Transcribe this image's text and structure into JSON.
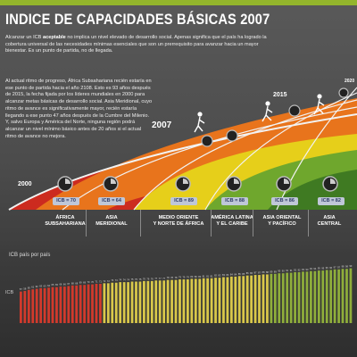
{
  "title": "INDICE DE CAPACIDADES BÁSICAS 2007",
  "intro": {
    "prefix": "Alcanzar un ICB ",
    "bold": "aceptable",
    "rest": " no implica un nivel elevado de desarrollo social. Apenas significa que el país ha logrado la cobertura universal de las necesidades mínimas esenciales que son un prerrequisito para avanzar hacia un mayor bienestar. Es un punto de partida, no de llegada."
  },
  "paragraph": "Al actual ritmo de progreso, África Subsahariana recién estaría en ese punto de partida hacia el año 2108. Esto es 93 años después de 2015, la fecha fijada por los líderes mundiales en 2000 para alcanzar metas básicas de desarrollo social. Asia Meridional, cuyo ritmo de avance es significativamente mayor, recién estaría llegando a ese punto 47 años después de la Cumbre del Milenio. Y, salvo Europa y América del Norte, ninguna región podrá alcanzar un nivel mínimo básico antes de 20 años si el actual ritmo de avance no mejora.",
  "years": {
    "y2000": "2000",
    "y2007": "2007",
    "y2015": "2015",
    "y2020": "2020"
  },
  "regions": [
    {
      "name1": "ÁFRICA",
      "name2": "SUBSAHARIANA",
      "icb": "ICB = 70"
    },
    {
      "name1": "ASIA",
      "name2": "MERIDIONAL",
      "icb": "ICB = 64"
    },
    {
      "name1": "MEDIO ORIENTE",
      "name2": "Y NORTE DE ÁFRICA",
      "icb": "ICB = 89"
    },
    {
      "name1": "AMÉRICA LATINA",
      "name2": "Y EL CARIBE",
      "icb": "ICB = 88"
    },
    {
      "name1": "ASIA ORIENTAL",
      "name2": "Y PACÍFICO",
      "icb": "ICB = 86"
    },
    {
      "name1": "ASIA",
      "name2": "CENTRAL",
      "icb": "ICB = 82"
    }
  ],
  "track_colors": {
    "red": "#cc2b1f",
    "orange": "#e8741c",
    "yellow": "#e6cf1a",
    "green": "#6fa72d",
    "darkgreen": "#3f7a22",
    "white": "#f2f2f2"
  },
  "chart_label": "ICB país por país",
  "chart_data": {
    "type": "bar",
    "ylabel": "ICB",
    "title": "ICB país por país",
    "ylim": [
      0,
      100
    ],
    "series": [
      {
        "values": [
          57,
          58,
          60,
          61,
          62,
          63,
          63,
          64,
          65,
          65,
          66,
          66,
          67,
          68,
          68,
          69,
          69,
          70,
          70,
          71,
          71,
          72,
          72,
          73,
          73,
          74,
          74,
          74,
          75,
          75,
          75,
          76,
          76,
          76,
          77,
          77,
          77,
          78,
          78,
          78,
          79,
          79,
          79,
          80,
          80,
          80,
          81,
          81,
          81,
          82,
          82,
          83,
          83,
          84,
          84,
          85,
          85,
          86,
          86,
          87,
          87,
          88,
          88,
          89,
          89,
          90,
          90,
          91,
          91,
          92,
          92,
          93,
          93,
          94,
          94,
          95,
          95,
          96,
          96,
          97,
          97,
          98,
          98,
          99
        ]
      }
    ],
    "bar_colors": {
      "red": "#d23a2c",
      "yellow": "#d9c84a",
      "green": "#8fae3b"
    }
  }
}
